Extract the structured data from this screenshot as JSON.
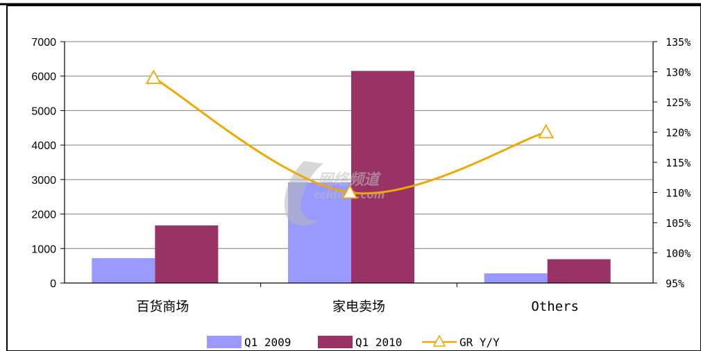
{
  "chart_data": {
    "type": "bar",
    "categories": [
      "百货商场",
      "家电卖场",
      "Others"
    ],
    "series": [
      {
        "name": "Q1 2009",
        "kind": "bar",
        "axis": "left",
        "color": "#9999ff",
        "values": [
          720,
          2920,
          280
        ]
      },
      {
        "name": "Q1 2010",
        "kind": "bar",
        "axis": "left",
        "color": "#993366",
        "values": [
          1670,
          6150,
          690
        ]
      },
      {
        "name": "GR Y/Y",
        "kind": "line",
        "axis": "right",
        "color": "#f0a800",
        "marker": "triangle",
        "values": [
          1.29,
          1.1,
          1.2
        ]
      }
    ],
    "y_left": {
      "min": 0,
      "max": 7000,
      "step": 1000,
      "ticks": [
        "0",
        "1000",
        "2000",
        "3000",
        "4000",
        "5000",
        "6000",
        "7000"
      ]
    },
    "y_right": {
      "min": 0.95,
      "max": 1.35,
      "step": 0.05,
      "ticks": [
        "95%",
        "100%",
        "105%",
        "110%",
        "115%",
        "120%",
        "125%",
        "130%",
        "135%"
      ]
    },
    "grid": true,
    "legend": "bottom",
    "watermark": "ccidnet.com"
  }
}
